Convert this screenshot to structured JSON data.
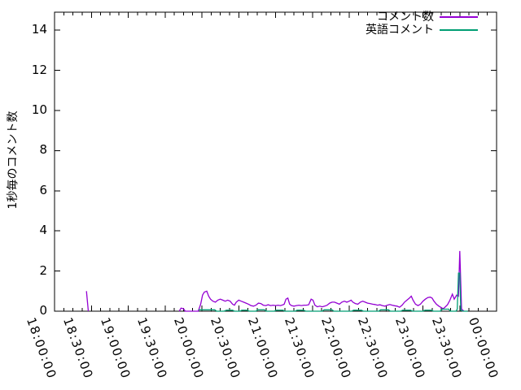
{
  "chart_data": {
    "type": "line",
    "title": "",
    "xlabel": "",
    "ylabel": "1秒毎のコメント数",
    "x_unit": "minutes since 18:00:00",
    "xlim": [
      0,
      360
    ],
    "ylim": [
      0,
      14.9
    ],
    "grid": false,
    "legend_position": "top-right",
    "axis_color": "#000000",
    "y_ticks": [
      0,
      2,
      4,
      6,
      8,
      10,
      12,
      14
    ],
    "x_minor_interval_min": 7.5,
    "x_ticks": [
      {
        "t": 0,
        "label": "18:00:00"
      },
      {
        "t": 30,
        "label": "18:30:00"
      },
      {
        "t": 60,
        "label": "19:00:00"
      },
      {
        "t": 90,
        "label": "19:30:00"
      },
      {
        "t": 120,
        "label": "20:00:00"
      },
      {
        "t": 150,
        "label": "20:30:00"
      },
      {
        "t": 180,
        "label": "21:00:00"
      },
      {
        "t": 210,
        "label": "21:30:00"
      },
      {
        "t": 240,
        "label": "22:00:00"
      },
      {
        "t": 270,
        "label": "22:30:00"
      },
      {
        "t": 300,
        "label": "23:00:00"
      },
      {
        "t": 330,
        "label": "23:30:00"
      },
      {
        "t": 360,
        "label": "00:00:00"
      }
    ],
    "series": [
      {
        "key": "comments",
        "name": "コメント数",
        "color": "#9400d3",
        "segments": [
          [
            [
              26,
              1.0
            ],
            [
              27.5,
              0
            ]
          ],
          [
            [
              101.5,
              0
            ],
            [
              103,
              0.15
            ],
            [
              105,
              0.12
            ],
            [
              106.5,
              0
            ],
            [
              111,
              0
            ],
            [
              117,
              0
            ],
            [
              119,
              0.35
            ],
            [
              120.5,
              0.8
            ],
            [
              122,
              0.95
            ],
            [
              124,
              1.0
            ],
            [
              125.5,
              0.75
            ],
            [
              127,
              0.6
            ],
            [
              129,
              0.5
            ],
            [
              131,
              0.45
            ],
            [
              133,
              0.55
            ],
            [
              135,
              0.6
            ],
            [
              137,
              0.55
            ],
            [
              139,
              0.5
            ],
            [
              141,
              0.55
            ],
            [
              143,
              0.5
            ],
            [
              145,
              0.35
            ],
            [
              146.5,
              0.3
            ],
            [
              148,
              0.45
            ],
            [
              150,
              0.55
            ],
            [
              152,
              0.5
            ],
            [
              154,
              0.45
            ],
            [
              156,
              0.4
            ],
            [
              158,
              0.35
            ],
            [
              160,
              0.28
            ],
            [
              162,
              0.25
            ],
            [
              164,
              0.3
            ],
            [
              166,
              0.4
            ],
            [
              168,
              0.38
            ],
            [
              170,
              0.3
            ],
            [
              172,
              0.28
            ],
            [
              174,
              0.32
            ],
            [
              176,
              0.28
            ],
            [
              178,
              0.3
            ],
            [
              180,
              0.28
            ],
            [
              182,
              0.3
            ],
            [
              184,
              0.28
            ],
            [
              186,
              0.32
            ],
            [
              187,
              0.35
            ],
            [
              188.5,
              0.6
            ],
            [
              190,
              0.65
            ],
            [
              191.5,
              0.35
            ],
            [
              193,
              0.28
            ],
            [
              195,
              0.25
            ],
            [
              197,
              0.28
            ],
            [
              199,
              0.3
            ],
            [
              201,
              0.28
            ],
            [
              203,
              0.3
            ],
            [
              205,
              0.3
            ],
            [
              207,
              0.32
            ],
            [
              209,
              0.6
            ],
            [
              210.5,
              0.55
            ],
            [
              212,
              0.3
            ],
            [
              214,
              0.22
            ],
            [
              216,
              0.25
            ],
            [
              218,
              0.22
            ],
            [
              220,
              0.25
            ],
            [
              222,
              0.3
            ],
            [
              224,
              0.4
            ],
            [
              226,
              0.45
            ],
            [
              228,
              0.45
            ],
            [
              230,
              0.4
            ],
            [
              232,
              0.35
            ],
            [
              234,
              0.45
            ],
            [
              236,
              0.5
            ],
            [
              238,
              0.45
            ],
            [
              240,
              0.5
            ],
            [
              241.5,
              0.55
            ],
            [
              243,
              0.45
            ],
            [
              245,
              0.38
            ],
            [
              247,
              0.35
            ],
            [
              249,
              0.45
            ],
            [
              251,
              0.5
            ],
            [
              253,
              0.45
            ],
            [
              255,
              0.4
            ],
            [
              257,
              0.38
            ],
            [
              259,
              0.35
            ],
            [
              261,
              0.33
            ],
            [
              263,
              0.3
            ],
            [
              265,
              0.32
            ],
            [
              267,
              0.28
            ],
            [
              269,
              0.25
            ],
            [
              271,
              0.3
            ],
            [
              273,
              0.33
            ],
            [
              275,
              0.3
            ],
            [
              277,
              0.27
            ],
            [
              279,
              0.25
            ],
            [
              281,
              0.2
            ],
            [
              283,
              0.3
            ],
            [
              285,
              0.45
            ],
            [
              287,
              0.55
            ],
            [
              289,
              0.65
            ],
            [
              290.5,
              0.75
            ],
            [
              292,
              0.55
            ],
            [
              294,
              0.35
            ],
            [
              296,
              0.28
            ],
            [
              298,
              0.35
            ],
            [
              300,
              0.5
            ],
            [
              302,
              0.6
            ],
            [
              304,
              0.68
            ],
            [
              306,
              0.7
            ],
            [
              307.5,
              0.65
            ],
            [
              309,
              0.5
            ],
            [
              311,
              0.35
            ],
            [
              313,
              0.25
            ],
            [
              315,
              0.18
            ],
            [
              316.5,
              0.12
            ],
            [
              318,
              0.2
            ],
            [
              320,
              0.32
            ],
            [
              322,
              0.55
            ],
            [
              324,
              0.85
            ],
            [
              325.5,
              0.6
            ],
            [
              327.5,
              0.8
            ],
            [
              329,
              0.75
            ],
            [
              330,
              3.0
            ],
            [
              331.5,
              0.1
            ],
            [
              333.5,
              0
            ]
          ]
        ]
      },
      {
        "key": "english-comments",
        "name": "英語コメント",
        "color": "#009e73",
        "segments": [
          [
            [
              117.5,
              0.07
            ],
            [
              126,
              0.07
            ],
            [
              130.5,
              0.07
            ],
            [
              132,
              0
            ],
            [
              138,
              0
            ],
            [
              140,
              0.05
            ],
            [
              145,
              0.05
            ],
            [
              146.5,
              0
            ],
            [
              151,
              0
            ],
            [
              152.5,
              0.05
            ],
            [
              157,
              0.05
            ],
            [
              158.5,
              0
            ],
            [
              164,
              0
            ],
            [
              165.5,
              0.07
            ],
            [
              171,
              0.07
            ],
            [
              172.5,
              0
            ],
            [
              179,
              0
            ],
            [
              180.5,
              0.05
            ],
            [
              186,
              0.05
            ],
            [
              187.5,
              0
            ],
            [
              196,
              0
            ],
            [
              197.5,
              0.05
            ],
            [
              203,
              0.05
            ],
            [
              204.5,
              0
            ],
            [
              218,
              0
            ],
            [
              219.5,
              0.07
            ],
            [
              226,
              0.07
            ],
            [
              227.5,
              0
            ],
            [
              242,
              0
            ],
            [
              243.5,
              0.05
            ],
            [
              250,
              0.05
            ],
            [
              251.5,
              0
            ],
            [
              264,
              0
            ],
            [
              265.5,
              0.07
            ],
            [
              272,
              0.07
            ],
            [
              273.5,
              0
            ],
            [
              282,
              0
            ],
            [
              283.5,
              0.05
            ],
            [
              290,
              0.05
            ],
            [
              291.5,
              0
            ],
            [
              300,
              0
            ],
            [
              301.5,
              0.05
            ],
            [
              307,
              0.05
            ],
            [
              308.5,
              0
            ],
            [
              314,
              0
            ],
            [
              316,
              0.1
            ],
            [
              321,
              0.1
            ],
            [
              322.5,
              0
            ],
            [
              327,
              0
            ],
            [
              328,
              0.1
            ],
            [
              329,
              1.9
            ],
            [
              330,
              1.9
            ],
            [
              330.8,
              0.05
            ],
            [
              333,
              0
            ],
            [
              336.5,
              0
            ]
          ]
        ]
      }
    ]
  },
  "legend": {
    "items": [
      {
        "label": "コメント数"
      },
      {
        "label": "英語コメント"
      }
    ]
  }
}
